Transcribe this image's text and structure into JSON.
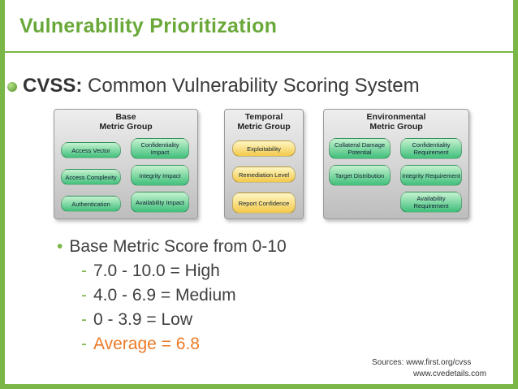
{
  "slide": {
    "title": "Vulnerability Prioritization",
    "subtitle_lead": "CVSS:",
    "subtitle_rest": " Common Vulnerability Scoring System"
  },
  "diagram": {
    "base": {
      "title": "Base\nMetric Group",
      "items": [
        "Access Vector",
        "Confidentiality Impact",
        "Access Complexity",
        "Integrity Impact",
        "Authentication",
        "Availability Impact"
      ]
    },
    "temporal": {
      "title": "Temporal\nMetric Group",
      "items": [
        "Exploitability",
        "Remediation Level",
        "Report Confidence"
      ]
    },
    "environmental": {
      "title": "Environmental\nMetric Group",
      "items": [
        "Collateral Damage Potential",
        "Confidentiality Requirement",
        "Target Distribution",
        "Integrity Requirement",
        "Availability Requirement"
      ]
    }
  },
  "bullets": {
    "main": "Base Metric Score from 0-10",
    "subs": [
      "7.0 - 10.0 = High",
      "4.0 - 6.9 = Medium",
      "0 - 3.9 = Low",
      "Average = 6.8"
    ]
  },
  "sources": {
    "label": "Sources:",
    "line1": "www.first.org/cvss",
    "line2": "www.cvedetails.com"
  },
  "colors": {
    "accent_green": "#7ab648",
    "highlight_orange": "#ec7a26"
  }
}
